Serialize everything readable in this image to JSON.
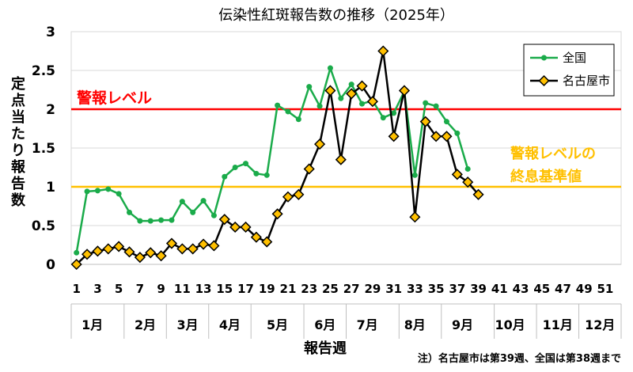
{
  "chart_data": {
    "type": "line",
    "title": "伝染性紅斑報告数の推移（2025年）",
    "xlabel": "報告週",
    "ylabel": "定点当たり報告数",
    "ylim": [
      0,
      3
    ],
    "xlim": [
      1,
      52
    ],
    "y_ticks": [
      "0",
      "0.5",
      "1",
      "1.5",
      "2",
      "2.5",
      "3"
    ],
    "x_ticks": [
      "1",
      "3",
      "5",
      "7",
      "9",
      "11",
      "13",
      "15",
      "17",
      "19",
      "21",
      "23",
      "25",
      "27",
      "29",
      "31",
      "33",
      "35",
      "37",
      "39",
      "41",
      "43",
      "45",
      "47",
      "49",
      "51"
    ],
    "months": [
      {
        "label": "1月",
        "center_week": 2.5
      },
      {
        "label": "2月",
        "center_week": 7.5
      },
      {
        "label": "3月",
        "center_week": 11.5
      },
      {
        "label": "4月",
        "center_week": 15.5
      },
      {
        "label": "5月",
        "center_week": 20
      },
      {
        "label": "6月",
        "center_week": 24.5
      },
      {
        "label": "7月",
        "center_week": 28.5
      },
      {
        "label": "8月",
        "center_week": 33
      },
      {
        "label": "9月",
        "center_week": 37.5
      },
      {
        "label": "10月",
        "center_week": 42
      },
      {
        "label": "11月",
        "center_week": 46.5
      },
      {
        "label": "12月",
        "center_week": 50.5
      }
    ],
    "month_boundaries": [
      5,
      9,
      13,
      17,
      22,
      26,
      31,
      35,
      40,
      44,
      48
    ],
    "grid": "horizontal",
    "legend_position": "top-right",
    "series": [
      {
        "name": "全国",
        "color": "#1aab4a",
        "marker": "circle",
        "x": [
          1,
          2,
          3,
          4,
          5,
          6,
          7,
          8,
          9,
          10,
          11,
          12,
          13,
          14,
          15,
          16,
          17,
          18,
          19,
          20,
          21,
          22,
          23,
          24,
          25,
          26,
          27,
          28,
          29,
          30,
          31,
          32,
          33,
          34,
          35,
          36,
          37,
          38
        ],
        "values": [
          0.15,
          0.94,
          0.95,
          0.97,
          0.91,
          0.67,
          0.56,
          0.56,
          0.57,
          0.57,
          0.81,
          0.67,
          0.82,
          0.63,
          1.13,
          1.25,
          1.3,
          1.17,
          1.15,
          2.05,
          1.97,
          1.87,
          2.29,
          2.04,
          2.53,
          2.14,
          2.32,
          2.07,
          2.11,
          1.89,
          1.95,
          2.23,
          1.15,
          2.08,
          2.04,
          1.84,
          1.69,
          1.23
        ]
      },
      {
        "name": "名古屋市",
        "color": "#000000",
        "marker": "diamond",
        "marker_fill": "#ffc000",
        "x": [
          1,
          2,
          3,
          4,
          5,
          6,
          7,
          8,
          9,
          10,
          11,
          12,
          13,
          14,
          15,
          16,
          17,
          18,
          19,
          20,
          21,
          22,
          23,
          24,
          25,
          26,
          27,
          28,
          29,
          30,
          31,
          32,
          33,
          34,
          35,
          36,
          37,
          38,
          39
        ],
        "values": [
          0.0,
          0.13,
          0.17,
          0.2,
          0.23,
          0.16,
          0.09,
          0.15,
          0.11,
          0.27,
          0.2,
          0.2,
          0.26,
          0.24,
          0.58,
          0.48,
          0.48,
          0.35,
          0.29,
          0.65,
          0.87,
          0.9,
          1.23,
          1.55,
          2.24,
          1.35,
          2.2,
          2.3,
          2.1,
          2.75,
          1.65,
          2.24,
          0.61,
          1.84,
          1.65,
          1.65,
          1.16,
          1.06,
          0.9
        ]
      }
    ],
    "reference_lines": [
      {
        "value": 2,
        "color": "#ff0000",
        "label": "警報レベル"
      },
      {
        "value": 1,
        "color": "#ffc000",
        "label_lines": [
          "警報レベルの",
          "終息基準値"
        ]
      }
    ],
    "note": "注）名古屋市は第39週、全国は第38週まで"
  }
}
